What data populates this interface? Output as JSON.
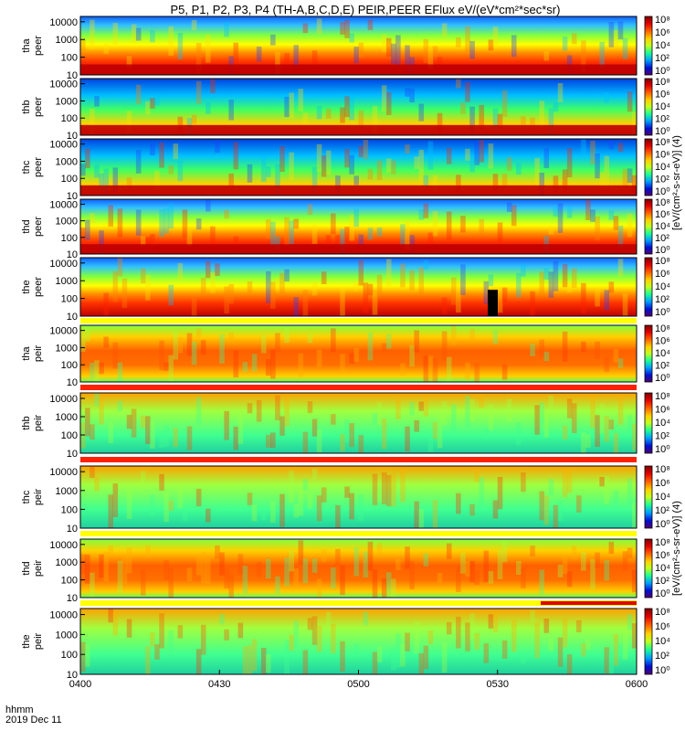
{
  "title": "P5, P1, P2, P3, P4 (TH-A,B,C,D,E) PEIR,PEER EFlux eV/(eV*cm²*sec*sr)",
  "footer": {
    "time_label": "hhmm",
    "date_label": "2019 Dec 11"
  },
  "colorbar": {
    "label_peer": "[eV/(cm²-s-sr-eV)] (4)",
    "label_peir": "[eV/(cm²-s-sr-eV)] (4)",
    "peer_ticks": [
      "10⁸",
      "10⁶",
      "10⁴",
      "10²",
      "10⁰"
    ],
    "peir_ticks": [
      "10⁸",
      "10⁶",
      "10⁴",
      "10²",
      "10⁰"
    ],
    "colors": [
      "#7a0000",
      "#d40000",
      "#ff5000",
      "#ffb000",
      "#ffff00",
      "#80ff40",
      "#00d0a0",
      "#0080ff",
      "#0000c0",
      "#4a0070"
    ]
  },
  "chart_data": {
    "type": "heatmap",
    "x_ticks": [
      "0400",
      "0430",
      "0500",
      "0530",
      "0600"
    ],
    "x_range": [
      "0400",
      "0600"
    ],
    "y_scale": "log",
    "y_ticks": [
      "10000",
      "1000",
      "100",
      "10"
    ],
    "panels": [
      {
        "probe": "tha",
        "instrument": "peer",
        "y1": "tha",
        "y2": "peer"
      },
      {
        "probe": "thb",
        "instrument": "peer",
        "y1": "thb",
        "y2": "peer"
      },
      {
        "probe": "thc",
        "instrument": "peer",
        "y1": "thc",
        "y2": "peer"
      },
      {
        "probe": "thd",
        "instrument": "peer",
        "y1": "thd",
        "y2": "peer"
      },
      {
        "probe": "the",
        "instrument": "peer",
        "y1": "the",
        "y2": "peer"
      },
      {
        "probe": "tha",
        "instrument": "peir",
        "y1": "tha",
        "y2": "peir"
      },
      {
        "probe": "thb",
        "instrument": "peir",
        "y1": "thb",
        "y2": "peir"
      },
      {
        "probe": "thc",
        "instrument": "peir",
        "y1": "thc",
        "y2": "peir"
      },
      {
        "probe": "thd",
        "instrument": "peir",
        "y1": "thd",
        "y2": "peir"
      },
      {
        "probe": "the",
        "instrument": "peir",
        "y1": "the",
        "y2": "peir"
      }
    ]
  }
}
